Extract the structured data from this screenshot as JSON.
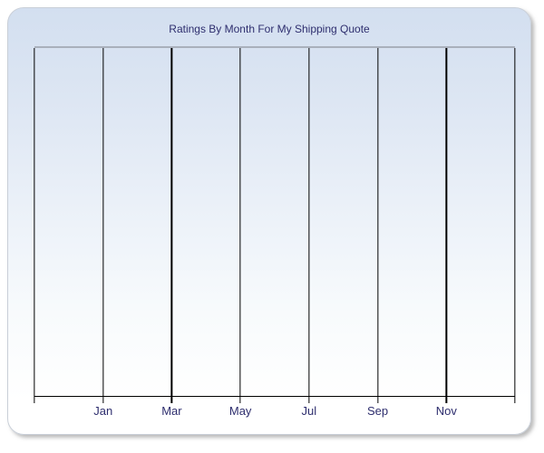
{
  "chart_data": {
    "type": "line",
    "title": "Ratings By Month For My Shipping Quote",
    "x_tick_labels": [
      "Jan",
      "Mar",
      "May",
      "Jul",
      "Sep",
      "Nov"
    ],
    "x_divisions": 7,
    "series": [],
    "ylabel": "",
    "xlabel": "",
    "grid": "vertical-only",
    "legend_position": "none"
  },
  "colors": {
    "title_text": "#2e2e6e",
    "tick_label_text": "#2e2e6e",
    "gridline": "#000000",
    "axis_line": "#000000",
    "plot_top_border": "#a9b0bc",
    "panel_border": "#c9cfd8",
    "panel_gradient_top": "#d3dff0",
    "panel_gradient_bottom": "#ffffff"
  }
}
